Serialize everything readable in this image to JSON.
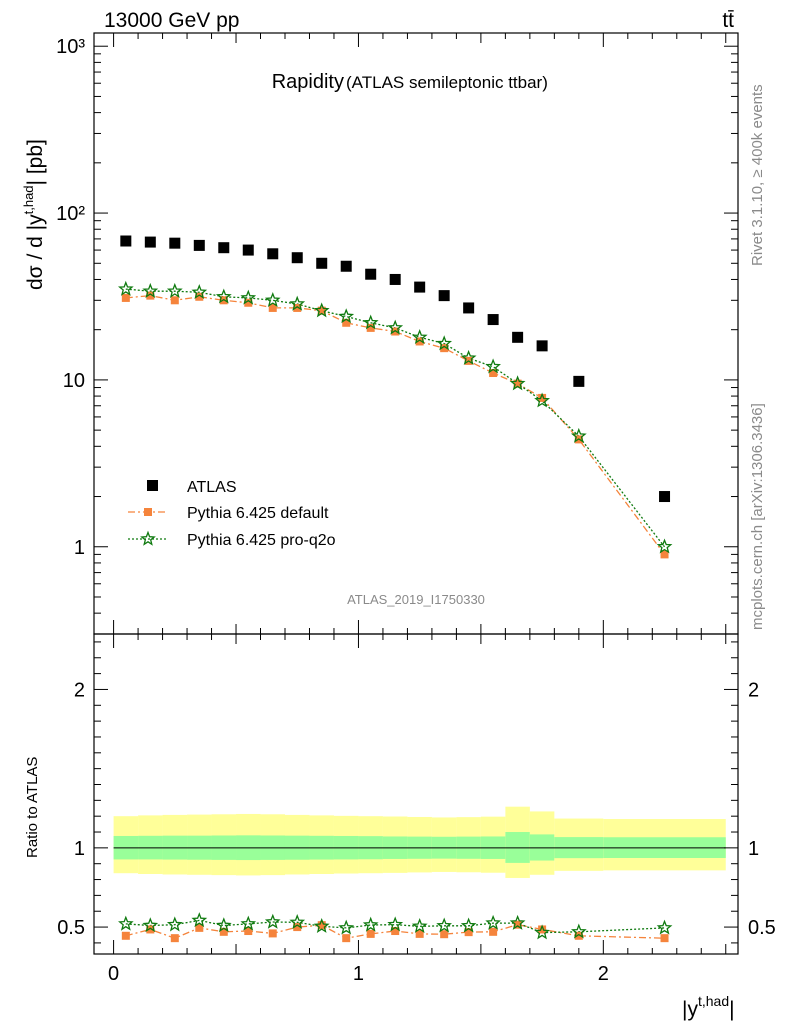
{
  "header": {
    "left": "13000 GeV pp",
    "right": "tt̄"
  },
  "side": {
    "rivet": "Rivet 3.1.10, ≥ 400k events",
    "mcplots": "mcplots.cern.ch [arXiv:1306.3436]"
  },
  "colors": {
    "atlas": "#000000",
    "pythia_default": "#f5843c",
    "pythia_proq2o": "#0f7a0f",
    "band_inner": "#99ff99",
    "band_outer": "#ffff99"
  },
  "chart_data": [
    {
      "type": "scatter",
      "title": "Rapidity",
      "subtitle": "(ATLAS semileptonic ttbar)",
      "ylabel": "dσ / d |y^{t,had}| [pb]",
      "yscale": "log",
      "ylim": [
        0.3,
        1200
      ],
      "xlim": [
        -0.08,
        2.55
      ],
      "analysis_tag": "ATLAS_2019_I1750330",
      "legend_position": "bottom-left",
      "yticks": [
        "1",
        "10",
        "10²",
        "10³"
      ],
      "series": [
        {
          "name": "ATLAS",
          "marker": "square",
          "x": [
            0.05,
            0.15,
            0.25,
            0.35,
            0.45,
            0.55,
            0.65,
            0.75,
            0.85,
            0.95,
            1.05,
            1.15,
            1.25,
            1.35,
            1.45,
            1.55,
            1.65,
            1.75,
            1.9,
            2.25
          ],
          "y": [
            68,
            67,
            66,
            64,
            62,
            60,
            57,
            54,
            50,
            48,
            43,
            40,
            36,
            32,
            27,
            23,
            18,
            16,
            9.8,
            2.0
          ]
        },
        {
          "name": "Pythia 6.425 default",
          "marker": "filled-square",
          "x": [
            0.05,
            0.15,
            0.25,
            0.35,
            0.45,
            0.55,
            0.65,
            0.75,
            0.85,
            0.95,
            1.05,
            1.15,
            1.25,
            1.35,
            1.45,
            1.55,
            1.65,
            1.75,
            1.9,
            2.25
          ],
          "y": [
            31,
            32,
            30,
            31.5,
            30,
            29,
            27,
            27,
            26,
            22,
            20.5,
            19.5,
            17,
            15.5,
            13,
            11,
            9.5,
            7.8,
            4.4,
            0.9
          ]
        },
        {
          "name": "Pythia 6.425 pro-q2o",
          "marker": "star",
          "x": [
            0.05,
            0.15,
            0.25,
            0.35,
            0.45,
            0.55,
            0.65,
            0.75,
            0.85,
            0.95,
            1.05,
            1.15,
            1.25,
            1.35,
            1.45,
            1.55,
            1.65,
            1.75,
            1.9,
            2.25
          ],
          "y": [
            35,
            34,
            34,
            33.5,
            31.5,
            31,
            30,
            28.5,
            26,
            24,
            22,
            20.5,
            18,
            16.5,
            13.5,
            12,
            9.5,
            7.5,
            4.6,
            1.0
          ]
        }
      ]
    },
    {
      "type": "scatter",
      "ylabel": "Ratio to ATLAS",
      "xlabel": "|y^{t,had}|",
      "ylim": [
        0.33,
        2.35
      ],
      "xlim": [
        -0.08,
        2.55
      ],
      "xticks": [
        "0",
        "1",
        "2"
      ],
      "yticks": [
        "0.5",
        "1",
        "2"
      ],
      "reference_line": 1,
      "bands": [
        {
          "x": [
            0.0,
            0.1,
            0.2,
            0.3,
            0.4,
            0.5,
            0.6,
            0.7,
            0.8,
            0.9,
            1.0,
            1.1,
            1.2,
            1.3,
            1.4,
            1.5,
            1.6,
            1.7,
            1.8,
            2.0,
            2.5
          ],
          "inner_lo": [
            0.927,
            0.927,
            0.926,
            0.925,
            0.924,
            0.923,
            0.924,
            0.925,
            0.926,
            0.927,
            0.928,
            0.93,
            0.931,
            0.932,
            0.931,
            0.93,
            0.905,
            0.92,
            0.935,
            0.936
          ],
          "inner_hi": [
            1.075,
            1.076,
            1.077,
            1.077,
            1.078,
            1.079,
            1.078,
            1.077,
            1.076,
            1.075,
            1.074,
            1.072,
            1.071,
            1.07,
            1.071,
            1.072,
            1.1,
            1.085,
            1.068,
            1.067
          ],
          "outer_lo": [
            0.84,
            0.835,
            0.832,
            0.83,
            0.828,
            0.826,
            0.828,
            0.832,
            0.835,
            0.838,
            0.84,
            0.842,
            0.845,
            0.848,
            0.846,
            0.843,
            0.81,
            0.83,
            0.855,
            0.858
          ],
          "outer_hi": [
            1.2,
            1.205,
            1.208,
            1.21,
            1.212,
            1.214,
            1.212,
            1.208,
            1.205,
            1.202,
            1.2,
            1.198,
            1.195,
            1.192,
            1.194,
            1.197,
            1.26,
            1.23,
            1.185,
            1.182
          ]
        }
      ],
      "series": [
        {
          "name": "Pythia 6.425 default",
          "x": [
            0.05,
            0.15,
            0.25,
            0.35,
            0.45,
            0.55,
            0.65,
            0.75,
            0.85,
            0.95,
            1.05,
            1.15,
            1.25,
            1.35,
            1.45,
            1.55,
            1.65,
            1.75,
            1.9,
            2.25
          ],
          "y": [
            0.445,
            0.485,
            0.43,
            0.495,
            0.47,
            0.475,
            0.46,
            0.5,
            0.512,
            0.43,
            0.457,
            0.475,
            0.457,
            0.455,
            0.468,
            0.47,
            0.515,
            0.485,
            0.445,
            0.43
          ]
        },
        {
          "name": "Pythia 6.425 pro-q2o",
          "x": [
            0.05,
            0.15,
            0.25,
            0.35,
            0.45,
            0.55,
            0.65,
            0.75,
            0.85,
            0.95,
            1.05,
            1.15,
            1.25,
            1.35,
            1.45,
            1.55,
            1.65,
            1.75,
            1.9,
            2.25
          ],
          "y": [
            0.52,
            0.51,
            0.515,
            0.542,
            0.51,
            0.52,
            0.532,
            0.53,
            0.505,
            0.495,
            0.513,
            0.515,
            0.505,
            0.508,
            0.508,
            0.525,
            0.525,
            0.465,
            0.47,
            0.495
          ]
        }
      ]
    }
  ]
}
